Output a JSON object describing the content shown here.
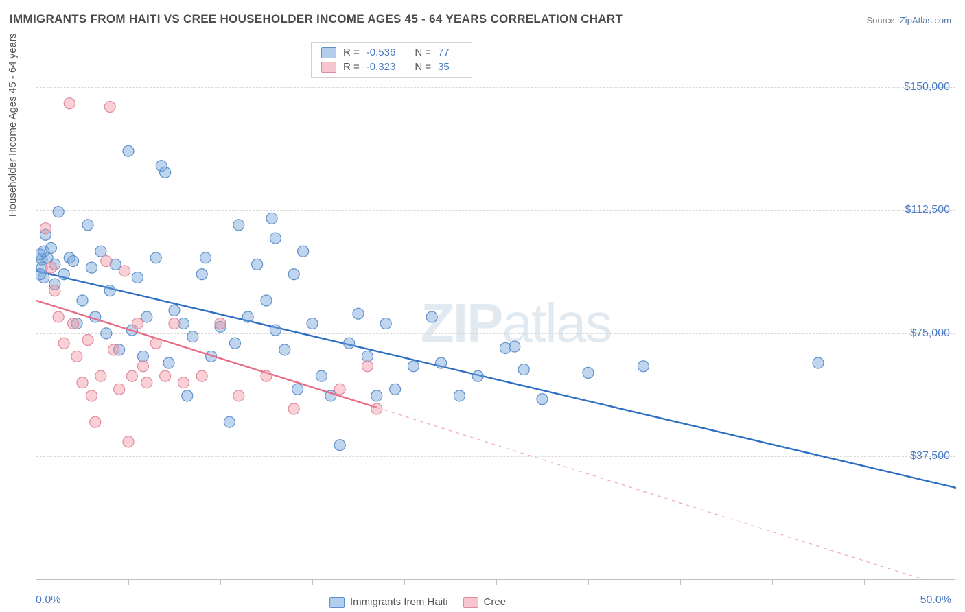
{
  "title": "IMMIGRANTS FROM HAITI VS CREE HOUSEHOLDER INCOME AGES 45 - 64 YEARS CORRELATION CHART",
  "source_label": "Source: ",
  "source_link": "ZipAtlas.com",
  "y_axis_label": "Householder Income Ages 45 - 64 years",
  "x_min_label": "0.0%",
  "x_max_label": "50.0%",
  "watermark_bold": "ZIP",
  "watermark_light": "atlas",
  "chart": {
    "type": "scatter-with-trendlines",
    "xlim": [
      0,
      50
    ],
    "ylim": [
      0,
      165000
    ],
    "y_ticks": [
      37500,
      75000,
      112500,
      150000
    ],
    "y_tick_labels": [
      "$37,500",
      "$75,000",
      "$112,500",
      "$150,000"
    ],
    "x_tick_positions": [
      5,
      10,
      15,
      20,
      25,
      30,
      35,
      40,
      45
    ],
    "plot_bg": "#ffffff",
    "grid_color": "#d8d8d8",
    "axis_color": "#c0c0c0",
    "marker_radius": 8,
    "marker_stroke_width": 1.2,
    "series": [
      {
        "name": "Immigrants from Haiti",
        "fill": "rgba(115,165,220,0.45)",
        "stroke": "#5e8fc9",
        "R": "-0.536",
        "N": "77",
        "trend": {
          "x1": 0,
          "y1": 94000,
          "x2": 50,
          "y2": 28000,
          "solid_until_x": 50,
          "color": "#2e6fc4",
          "width": 2.4
        },
        "points": [
          [
            0.3,
            97500
          ],
          [
            0.3,
            95000
          ],
          [
            0.4,
            92000
          ],
          [
            0.5,
            105000
          ],
          [
            0.6,
            98000
          ],
          [
            0.8,
            101000
          ],
          [
            1.0,
            96000
          ],
          [
            1.2,
            112000
          ],
          [
            1.5,
            93000
          ],
          [
            1.8,
            98000
          ],
          [
            2.0,
            97000
          ],
          [
            2.2,
            78000
          ],
          [
            2.5,
            85000
          ],
          [
            2.8,
            108000
          ],
          [
            3.0,
            95000
          ],
          [
            3.2,
            80000
          ],
          [
            3.5,
            100000
          ],
          [
            3.8,
            75000
          ],
          [
            4.0,
            88000
          ],
          [
            4.3,
            96000
          ],
          [
            4.5,
            70000
          ],
          [
            5.0,
            130500
          ],
          [
            5.2,
            76000
          ],
          [
            5.5,
            92000
          ],
          [
            5.8,
            68000
          ],
          [
            6.0,
            80000
          ],
          [
            6.5,
            98000
          ],
          [
            6.8,
            126000
          ],
          [
            7.0,
            124000
          ],
          [
            7.2,
            66000
          ],
          [
            7.5,
            82000
          ],
          [
            8.0,
            78000
          ],
          [
            8.2,
            56000
          ],
          [
            8.5,
            74000
          ],
          [
            9.0,
            93000
          ],
          [
            9.2,
            98000
          ],
          [
            9.5,
            68000
          ],
          [
            10.0,
            77000
          ],
          [
            10.5,
            48000
          ],
          [
            10.8,
            72000
          ],
          [
            11.0,
            108000
          ],
          [
            11.5,
            80000
          ],
          [
            12.0,
            96000
          ],
          [
            12.5,
            85000
          ],
          [
            12.8,
            110000
          ],
          [
            13.0,
            76000
          ],
          [
            13.0,
            104000
          ],
          [
            13.5,
            70000
          ],
          [
            14.0,
            93000
          ],
          [
            14.2,
            58000
          ],
          [
            14.5,
            100000
          ],
          [
            15.0,
            78000
          ],
          [
            15.5,
            62000
          ],
          [
            16.0,
            56000
          ],
          [
            16.5,
            41000
          ],
          [
            17.0,
            72000
          ],
          [
            17.5,
            81000
          ],
          [
            18.0,
            68000
          ],
          [
            18.5,
            56000
          ],
          [
            19.0,
            78000
          ],
          [
            19.5,
            58000
          ],
          [
            20.5,
            65000
          ],
          [
            21.5,
            80000
          ],
          [
            22.0,
            66000
          ],
          [
            23.0,
            56000
          ],
          [
            24.0,
            62000
          ],
          [
            25.5,
            70500
          ],
          [
            26.0,
            71000
          ],
          [
            26.5,
            64000
          ],
          [
            27.5,
            55000
          ],
          [
            30.0,
            63000
          ],
          [
            33.0,
            65000
          ],
          [
            42.5,
            66000
          ],
          [
            0.2,
            99000
          ],
          [
            0.2,
            93000
          ],
          [
            0.4,
            100000
          ],
          [
            1.0,
            90000
          ]
        ]
      },
      {
        "name": "Cree",
        "fill": "rgba(240,150,165,0.45)",
        "stroke": "#e08a9c",
        "R": "-0.323",
        "N": "35",
        "trend": {
          "x1": 0,
          "y1": 85000,
          "x2": 50,
          "y2": -3000,
          "solid_until_x": 18.5,
          "color": "#e86b85",
          "width": 2.4
        },
        "points": [
          [
            0.5,
            107000
          ],
          [
            0.8,
            95000
          ],
          [
            1.0,
            88000
          ],
          [
            1.2,
            80000
          ],
          [
            1.5,
            72000
          ],
          [
            1.8,
            145000
          ],
          [
            2.0,
            78000
          ],
          [
            2.2,
            68000
          ],
          [
            2.5,
            60000
          ],
          [
            2.8,
            73000
          ],
          [
            3.0,
            56000
          ],
          [
            3.2,
            48000
          ],
          [
            3.5,
            62000
          ],
          [
            3.8,
            97000
          ],
          [
            4.0,
            144000
          ],
          [
            4.2,
            70000
          ],
          [
            4.5,
            58000
          ],
          [
            4.8,
            94000
          ],
          [
            5.0,
            42000
          ],
          [
            5.2,
            62000
          ],
          [
            5.5,
            78000
          ],
          [
            5.8,
            65000
          ],
          [
            6.0,
            60000
          ],
          [
            6.5,
            72000
          ],
          [
            7.0,
            62000
          ],
          [
            7.5,
            78000
          ],
          [
            8.0,
            60000
          ],
          [
            9.0,
            62000
          ],
          [
            10.0,
            78000
          ],
          [
            11.0,
            56000
          ],
          [
            12.5,
            62000
          ],
          [
            14.0,
            52000
          ],
          [
            16.5,
            58000
          ],
          [
            18.0,
            65000
          ],
          [
            18.5,
            52000
          ]
        ]
      }
    ]
  },
  "legend_bottom": [
    {
      "swatch": "blue",
      "label": "Immigrants from Haiti"
    },
    {
      "swatch": "pink",
      "label": "Cree"
    }
  ]
}
